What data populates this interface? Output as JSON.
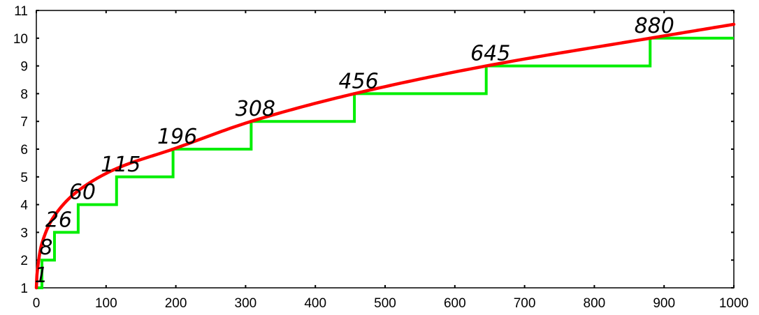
{
  "chart_data": {
    "type": "line",
    "title": "",
    "xlabel": "",
    "ylabel": "",
    "xlim": [
      0,
      1000
    ],
    "ylim": [
      1,
      11
    ],
    "x_ticks": [
      0,
      100,
      200,
      300,
      400,
      500,
      600,
      700,
      800,
      900,
      1000
    ],
    "y_ticks": [
      1,
      2,
      3,
      4,
      5,
      6,
      7,
      8,
      9,
      10,
      11
    ],
    "x_tick_labels": [
      "0",
      "100",
      "200",
      "300",
      "400",
      "500",
      "600",
      "700",
      "800",
      "900",
      "1000"
    ],
    "y_tick_labels": [
      "1",
      "2",
      "3",
      "4",
      "5",
      "6",
      "7",
      "8",
      "9",
      "10",
      "11"
    ],
    "grid": false,
    "legend": "none",
    "series": [
      {
        "kind": "smooth-curve",
        "color": "#ff0000",
        "x": [
          0,
          1,
          8,
          26,
          60,
          115,
          196,
          308,
          456,
          645,
          880,
          1000
        ],
        "y": [
          1,
          1.5,
          2.6,
          3.6,
          4.5,
          5.3,
          6.0,
          7.0,
          8.0,
          9.0,
          10.0,
          10.5
        ]
      },
      {
        "kind": "step",
        "color": "#00ee00",
        "breakpoints": [
          1,
          8,
          26,
          60,
          115,
          196,
          308,
          456,
          645,
          880
        ],
        "levels": [
          1,
          2,
          3,
          4,
          5,
          6,
          7,
          8,
          9,
          10
        ],
        "x_end": 1000
      }
    ],
    "annotations": [
      {
        "text": "1",
        "x": 1,
        "y": 1
      },
      {
        "text": "8",
        "x": 8,
        "y": 2
      },
      {
        "text": "26",
        "x": 26,
        "y": 3
      },
      {
        "text": "60",
        "x": 60,
        "y": 4
      },
      {
        "text": "115",
        "x": 115,
        "y": 5
      },
      {
        "text": "196",
        "x": 196,
        "y": 6
      },
      {
        "text": "308",
        "x": 308,
        "y": 7
      },
      {
        "text": "456",
        "x": 456,
        "y": 8
      },
      {
        "text": "645",
        "x": 645,
        "y": 9
      },
      {
        "text": "880",
        "x": 880,
        "y": 10
      }
    ]
  }
}
